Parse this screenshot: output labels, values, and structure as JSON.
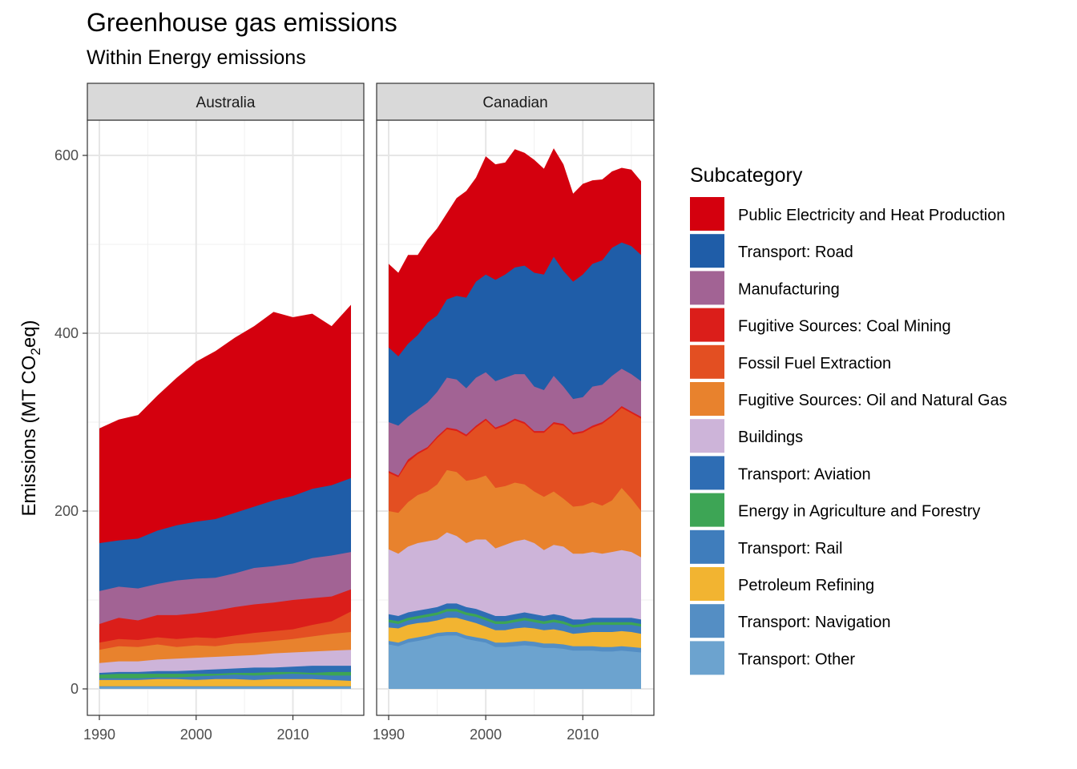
{
  "chart_data": {
    "type": "area",
    "title": "Greenhouse gas emissions",
    "subtitle": "Within Energy emissions",
    "ylabel_prefix": "Emissions (MT CO",
    "ylabel_sub": "2",
    "ylabel_suffix": "eq)",
    "xlabel": "",
    "xlim": [
      1990,
      2016
    ],
    "ylim": [
      0,
      600
    ],
    "x_ticks": [
      1990,
      2000,
      2010
    ],
    "x_tick_labels": [
      "1990",
      "2000",
      "2010"
    ],
    "y_ticks": [
      0,
      200,
      400,
      600
    ],
    "y_tick_labels": [
      "0",
      "200",
      "400",
      "600"
    ],
    "grid": true,
    "legend_title": "Subcategory",
    "legend_position": "right",
    "series": [
      {
        "name": "Public Electricity and Heat Production",
        "color": "#D4000E"
      },
      {
        "name": "Transport: Road",
        "color": "#1F5DA8"
      },
      {
        "name": "Manufacturing",
        "color": "#A26394"
      },
      {
        "name": "Fugitive Sources: Coal Mining",
        "color": "#DB1E1A"
      },
      {
        "name": "Fossil Fuel Extraction",
        "color": "#E34F22"
      },
      {
        "name": "Fugitive Sources: Oil and Natural Gas",
        "color": "#E8822D"
      },
      {
        "name": "Buildings",
        "color": "#CDB4D9"
      },
      {
        "name": "Transport: Aviation",
        "color": "#2E6DB4"
      },
      {
        "name": "Energy in Agriculture and Forestry",
        "color": "#3DA555"
      },
      {
        "name": "Transport: Rail",
        "color": "#3F7DBC"
      },
      {
        "name": "Petroleum Refining",
        "color": "#F2B431"
      },
      {
        "name": "Transport: Navigation",
        "color": "#548EC4"
      },
      {
        "name": "Transport: Other",
        "color": "#6CA3CF"
      }
    ],
    "panels": [
      {
        "label": "Australia",
        "x": [
          1990,
          1992,
          1994,
          1996,
          1998,
          2000,
          2002,
          2004,
          2006,
          2008,
          2010,
          2012,
          2014,
          2016
        ],
        "cumulative_top": [
          [
            293,
            303,
            308,
            330,
            350,
            368,
            380,
            395,
            408,
            424,
            418,
            422,
            408,
            432
          ],
          [
            164,
            167,
            169,
            178,
            184,
            188,
            191,
            198,
            205,
            212,
            217,
            225,
            229,
            237
          ],
          [
            110,
            115,
            113,
            118,
            122,
            124,
            125,
            130,
            136,
            138,
            141,
            147,
            150,
            154
          ],
          [
            73,
            80,
            77,
            83,
            83,
            85,
            88,
            92,
            95,
            97,
            100,
            102,
            104,
            112
          ],
          [
            52,
            56,
            55,
            58,
            56,
            58,
            57,
            60,
            63,
            65,
            67,
            72,
            76,
            87
          ],
          [
            44,
            48,
            47,
            50,
            47,
            49,
            48,
            51,
            52,
            54,
            56,
            59,
            62,
            64
          ],
          [
            29,
            31,
            31,
            33,
            34,
            35,
            36,
            37,
            38,
            40,
            41,
            42,
            43,
            44
          ],
          [
            18,
            19,
            19,
            20,
            20,
            21,
            22,
            23,
            24,
            24,
            25,
            26,
            26,
            26
          ],
          [
            16,
            17,
            17,
            17,
            17,
            17,
            17,
            18,
            18,
            19,
            19,
            18,
            19,
            19
          ],
          [
            12,
            12,
            12,
            13,
            13,
            14,
            15,
            16,
            15,
            16,
            17,
            16,
            15,
            15
          ],
          [
            10,
            10,
            10,
            11,
            11,
            10,
            11,
            11,
            10,
            11,
            11,
            11,
            10,
            9
          ],
          [
            3,
            3,
            3,
            3,
            3,
            3,
            3,
            3,
            3,
            3,
            3,
            3,
            3,
            3
          ],
          [
            2,
            2,
            2,
            2,
            2,
            2,
            2,
            2,
            2,
            2,
            2,
            2,
            2,
            2
          ]
        ]
      },
      {
        "label": "Canadian",
        "x": [
          1990,
          1991,
          1992,
          1993,
          1994,
          1995,
          1996,
          1997,
          1998,
          1999,
          2000,
          2001,
          2002,
          2003,
          2004,
          2005,
          2006,
          2007,
          2008,
          2009,
          2010,
          2011,
          2012,
          2013,
          2014,
          2015,
          2016
        ],
        "cumulative_top": [
          [
            478,
            468,
            488,
            488,
            505,
            518,
            535,
            552,
            560,
            575,
            599,
            590,
            592,
            607,
            603,
            595,
            585,
            608,
            590,
            557,
            568,
            572,
            573,
            582,
            586,
            584,
            571
          ],
          [
            384,
            374,
            388,
            398,
            412,
            420,
            438,
            442,
            440,
            458,
            466,
            460,
            466,
            474,
            476,
            468,
            466,
            486,
            470,
            458,
            466,
            478,
            482,
            496,
            502,
            498,
            488
          ],
          [
            300,
            296,
            306,
            314,
            322,
            334,
            350,
            348,
            338,
            350,
            356,
            346,
            350,
            354,
            354,
            340,
            336,
            352,
            340,
            326,
            328,
            340,
            342,
            352,
            360,
            354,
            346
          ],
          [
            245,
            240,
            258,
            266,
            272,
            284,
            294,
            292,
            286,
            296,
            304,
            294,
            298,
            304,
            300,
            290,
            290,
            300,
            298,
            288,
            290,
            296,
            300,
            308,
            318,
            312,
            306
          ],
          [
            243,
            238,
            255,
            264,
            270,
            282,
            292,
            290,
            284,
            294,
            302,
            292,
            296,
            302,
            298,
            288,
            288,
            298,
            296,
            286,
            288,
            294,
            298,
            306,
            316,
            310,
            304
          ],
          [
            200,
            198,
            210,
            218,
            222,
            230,
            246,
            244,
            234,
            236,
            240,
            226,
            228,
            232,
            230,
            222,
            216,
            222,
            214,
            205,
            206,
            210,
            206,
            212,
            226,
            214,
            200
          ],
          [
            157,
            152,
            160,
            164,
            166,
            168,
            176,
            172,
            164,
            168,
            168,
            158,
            162,
            166,
            168,
            164,
            156,
            162,
            160,
            152,
            152,
            154,
            152,
            154,
            156,
            154,
            148
          ],
          [
            84,
            82,
            86,
            88,
            90,
            92,
            96,
            96,
            92,
            90,
            86,
            82,
            82,
            84,
            86,
            84,
            82,
            84,
            82,
            78,
            78,
            80,
            80,
            80,
            80,
            80,
            78
          ],
          [
            78,
            76,
            80,
            82,
            84,
            86,
            90,
            90,
            86,
            84,
            80,
            76,
            76,
            78,
            80,
            78,
            76,
            78,
            76,
            72,
            73,
            75,
            75,
            75,
            75,
            75,
            73
          ],
          [
            75,
            73,
            77,
            79,
            81,
            83,
            87,
            87,
            83,
            81,
            77,
            73,
            73,
            75,
            77,
            75,
            73,
            75,
            73,
            69,
            70,
            72,
            72,
            72,
            72,
            72,
            70
          ],
          [
            69,
            68,
            72,
            74,
            75,
            77,
            80,
            80,
            77,
            74,
            70,
            66,
            66,
            68,
            69,
            68,
            66,
            67,
            65,
            62,
            63,
            64,
            64,
            64,
            65,
            64,
            62
          ],
          [
            54,
            52,
            56,
            58,
            60,
            63,
            64,
            64,
            60,
            58,
            56,
            52,
            52,
            53,
            54,
            53,
            51,
            51,
            50,
            48,
            48,
            48,
            47,
            47,
            48,
            47,
            46
          ],
          [
            50,
            48,
            52,
            54,
            56,
            59,
            60,
            60,
            56,
            54,
            52,
            47,
            47,
            48,
            49,
            48,
            46,
            46,
            45,
            43,
            43,
            43,
            42,
            42,
            43,
            42,
            41
          ]
        ]
      }
    ]
  }
}
